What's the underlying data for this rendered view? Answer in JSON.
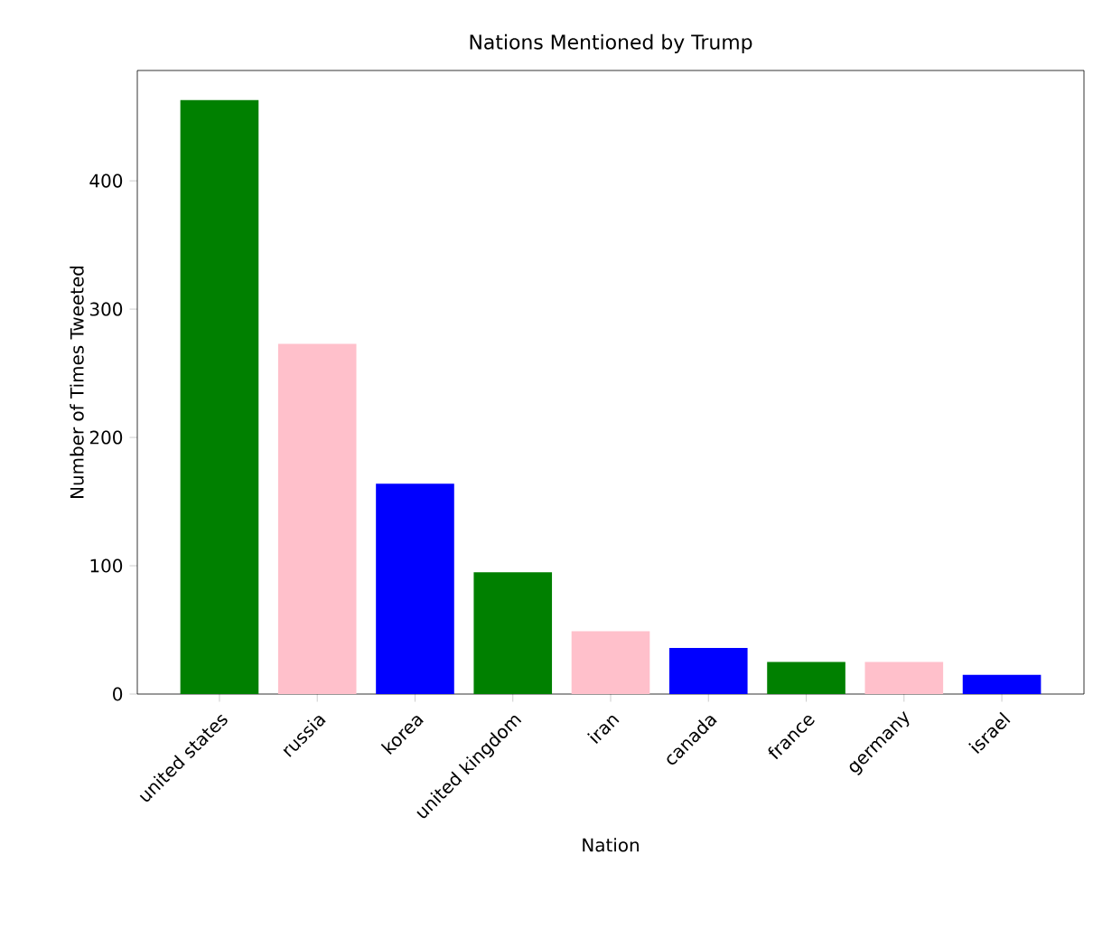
{
  "chart_data": {
    "type": "bar",
    "title": "Nations Mentioned by Trump",
    "xlabel": "Nation",
    "ylabel": "Number of Times Tweeted",
    "categories": [
      "united states",
      "russia",
      "korea",
      "united kingdom",
      "iran",
      "canada",
      "france",
      "germany",
      "israel"
    ],
    "values": [
      463,
      273,
      164,
      95,
      49,
      36,
      25,
      25,
      15
    ],
    "colors": [
      "#008000",
      "#ffc0cb",
      "#0000ff",
      "#008000",
      "#ffc0cb",
      "#0000ff",
      "#008000",
      "#ffc0cb",
      "#0000ff"
    ],
    "ylim": [
      0,
      486
    ],
    "yticks": [
      0,
      100,
      200,
      300,
      400
    ]
  }
}
